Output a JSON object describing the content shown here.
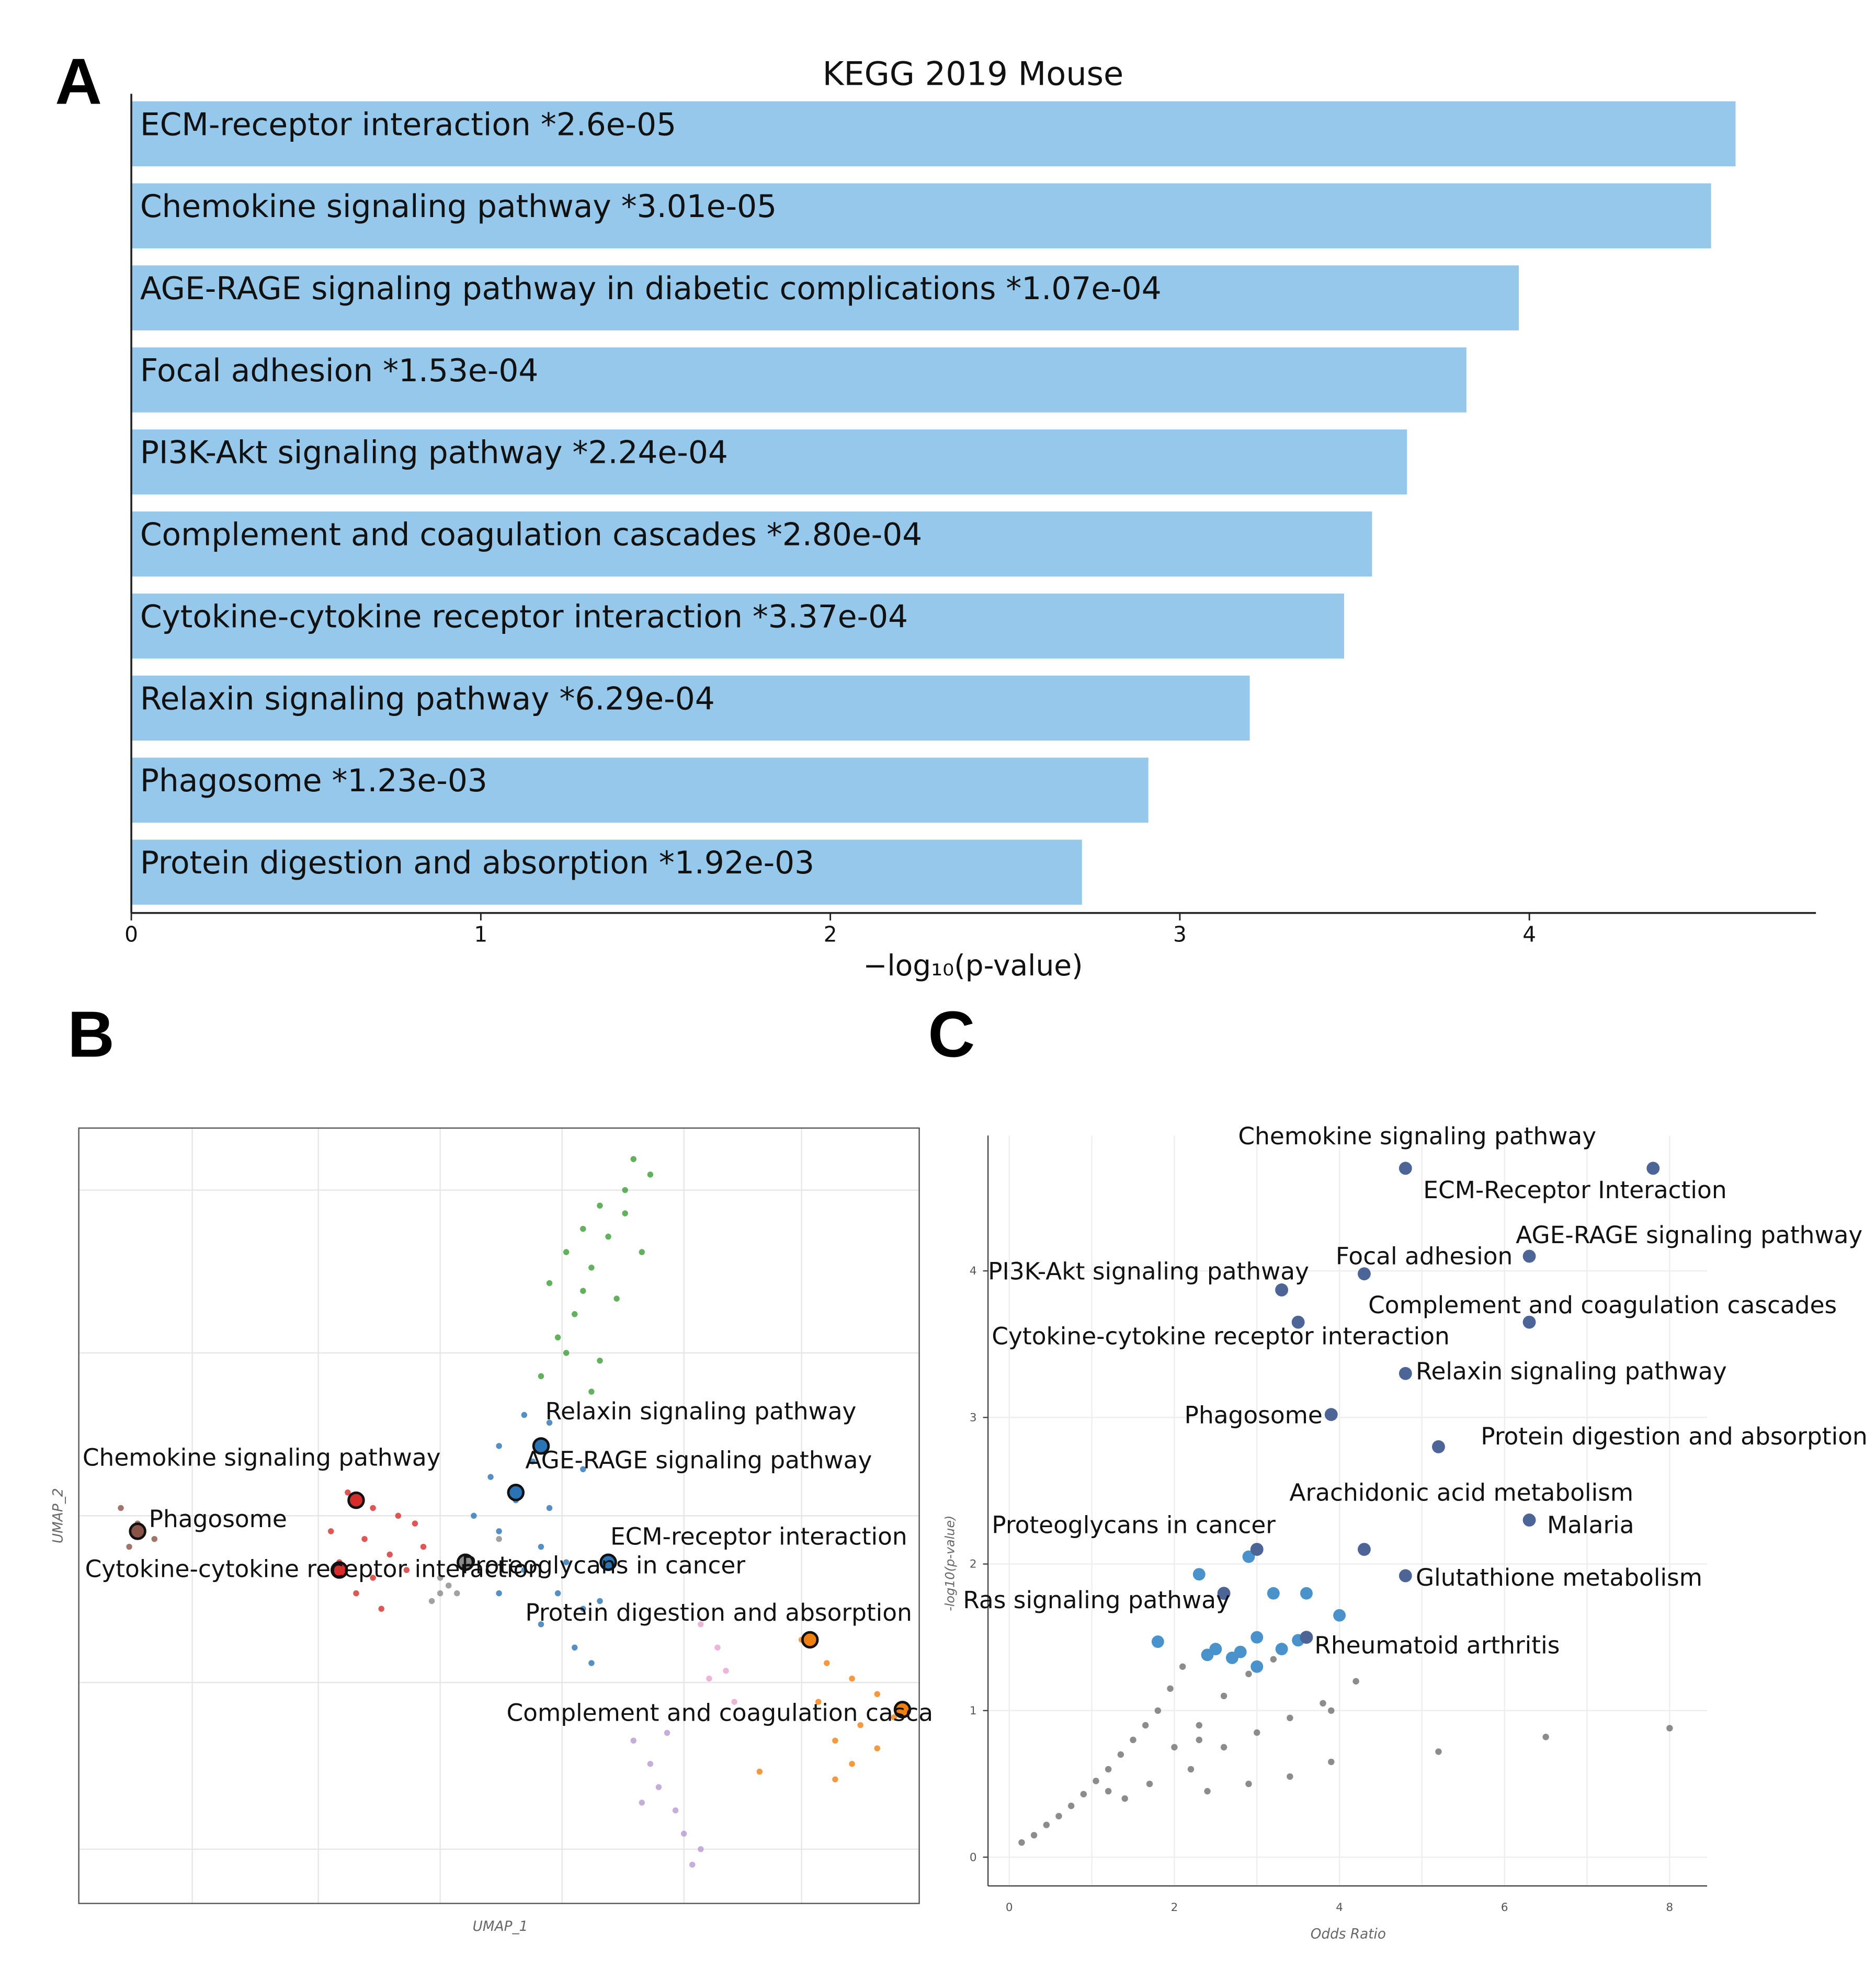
{
  "panels": {
    "a": "A",
    "b": "B",
    "c": "C"
  },
  "colors": {
    "bar": "#95c8ea",
    "green": "#3a9e35",
    "blue": "#2a73b5",
    "red": "#d62c2b",
    "brown": "#8a5347",
    "gray": "#8a8a8a",
    "orange": "#f07f12",
    "purple": "#b79ad2",
    "pink": "#e9a4cf",
    "darkblue": "#4c6596",
    "lightblue": "#5aa6d6"
  },
  "chart_data": [
    {
      "type": "bar",
      "orientation": "horizontal",
      "title": "KEGG 2019 Mouse",
      "xlabel": "−log₁₀(p-value)",
      "ylabel": "",
      "xlim": [
        0,
        4.82
      ],
      "xticks": [
        "0",
        "1",
        "2",
        "3",
        "4"
      ],
      "grid": false,
      "categories": [
        "ECM-receptor interaction  *2.6e-05",
        "Chemokine signaling pathway  *3.01e-05",
        "AGE-RAGE signaling pathway in diabetic complications  *1.07e-04",
        "Focal adhesion  *1.53e-04",
        "PI3K-Akt signaling pathway  *2.24e-04",
        "Complement and coagulation cascades  *2.80e-04",
        "Cytokine-cytokine receptor interaction  *3.37e-04",
        "Relaxin signaling pathway  *6.29e-04",
        "Phagosome  *1.23e-03",
        "Protein digestion and absorption  *1.92e-03"
      ],
      "values": [
        4.59,
        4.52,
        3.97,
        3.82,
        3.65,
        3.55,
        3.47,
        3.2,
        2.91,
        2.72
      ]
    },
    {
      "type": "scatter",
      "title": "",
      "xlabel": "UMAP_1",
      "ylabel": "UMAP_2",
      "xlim": [
        0,
        10
      ],
      "ylim": [
        0,
        10
      ],
      "grid": true,
      "clusters": [
        {
          "name": "green",
          "color": "green",
          "points": [
            [
              6.6,
              9.6
            ],
            [
              6.8,
              9.4
            ],
            [
              6.5,
              9.2
            ],
            [
              6.2,
              9.0
            ],
            [
              6.0,
              8.7
            ],
            [
              6.3,
              8.6
            ],
            [
              5.8,
              8.4
            ],
            [
              6.1,
              8.2
            ],
            [
              5.6,
              8.0
            ],
            [
              6.0,
              7.9
            ],
            [
              5.9,
              7.6
            ],
            [
              5.7,
              7.3
            ],
            [
              6.2,
              7.0
            ],
            [
              5.5,
              6.8
            ],
            [
              6.1,
              6.6
            ],
            [
              6.4,
              7.8
            ],
            [
              6.7,
              8.4
            ],
            [
              5.8,
              7.1
            ],
            [
              6.5,
              8.9
            ]
          ]
        },
        {
          "name": "blue",
          "color": "blue",
          "points": [
            [
              5.3,
              6.3
            ],
            [
              5.6,
              6.2
            ],
            [
              5.0,
              5.9
            ],
            [
              5.4,
              5.7
            ],
            [
              4.9,
              5.5
            ],
            [
              5.2,
              5.2
            ],
            [
              4.7,
              5.0
            ],
            [
              5.0,
              4.8
            ],
            [
              5.5,
              4.6
            ],
            [
              5.8,
              4.4
            ],
            [
              5.3,
              4.3
            ],
            [
              5.7,
              4.0
            ],
            [
              6.0,
              3.8
            ],
            [
              5.5,
              3.6
            ],
            [
              5.9,
              3.3
            ],
            [
              6.2,
              3.9
            ],
            [
              6.1,
              3.1
            ],
            [
              5.0,
              4.0
            ],
            [
              5.6,
              5.1
            ],
            [
              6.0,
              5.6
            ]
          ]
        },
        {
          "name": "red",
          "color": "red",
          "points": [
            [
              3.2,
              5.3
            ],
            [
              3.5,
              5.1
            ],
            [
              3.8,
              5.0
            ],
            [
              4.0,
              4.9
            ],
            [
              3.4,
              4.7
            ],
            [
              3.7,
              4.5
            ],
            [
              3.1,
              4.4
            ],
            [
              3.5,
              4.2
            ],
            [
              3.9,
              4.3
            ],
            [
              3.3,
              4.0
            ],
            [
              3.6,
              3.8
            ],
            [
              4.1,
              4.6
            ],
            [
              3.0,
              4.8
            ]
          ]
        },
        {
          "name": "brown",
          "color": "brown",
          "points": [
            [
              0.5,
              5.1
            ],
            [
              0.7,
              4.9
            ],
            [
              0.9,
              4.7
            ],
            [
              0.6,
              4.6
            ]
          ]
        },
        {
          "name": "gray",
          "color": "gray",
          "points": [
            [
              4.2,
              3.9
            ],
            [
              4.3,
              4.0
            ],
            [
              4.4,
              4.1
            ],
            [
              4.5,
              4.0
            ],
            [
              4.3,
              4.2
            ],
            [
              5.0,
              4.7
            ]
          ]
        },
        {
          "name": "pink",
          "color": "pink",
          "points": [
            [
              7.4,
              3.6
            ],
            [
              7.6,
              3.3
            ],
            [
              7.5,
              2.9
            ],
            [
              7.8,
              2.6
            ],
            [
              7.7,
              3.0
            ]
          ]
        },
        {
          "name": "purple",
          "color": "purple",
          "points": [
            [
              6.6,
              2.1
            ],
            [
              6.8,
              1.8
            ],
            [
              6.9,
              1.5
            ],
            [
              7.1,
              1.2
            ],
            [
              7.2,
              0.9
            ],
            [
              7.4,
              0.7
            ],
            [
              6.7,
              1.3
            ],
            [
              7.0,
              2.2
            ],
            [
              7.3,
              0.5
            ]
          ]
        },
        {
          "name": "orange",
          "color": "orange",
          "points": [
            [
              8.6,
              3.4
            ],
            [
              8.9,
              3.1
            ],
            [
              9.2,
              2.9
            ],
            [
              9.5,
              2.7
            ],
            [
              9.7,
              2.4
            ],
            [
              9.5,
              2.0
            ],
            [
              9.2,
              1.8
            ],
            [
              9.0,
              2.1
            ],
            [
              8.8,
              2.6
            ],
            [
              9.3,
              2.3
            ],
            [
              9.0,
              1.6
            ],
            [
              8.1,
              1.7
            ]
          ]
        }
      ],
      "highlights": [
        {
          "label": "Relaxin signaling pathway",
          "x": 5.5,
          "y": 5.9,
          "color": "blue"
        },
        {
          "label": "AGE-RAGE signaling pathway",
          "x": 5.2,
          "y": 5.3,
          "color": "blue"
        },
        {
          "label": "ECM-receptor interaction",
          "x": 6.3,
          "y": 4.4,
          "color": "blue"
        },
        {
          "label": "Proteoglycans in cancer",
          "x": 4.6,
          "y": 4.4,
          "color": "gray"
        },
        {
          "label": "Chemokine signaling pathway",
          "x": 3.3,
          "y": 5.2,
          "color": "red"
        },
        {
          "label": "Phagosome",
          "x": 0.7,
          "y": 4.8,
          "color": "brown"
        },
        {
          "label": "Cytokine-cytokine receptor interaction",
          "x": 3.1,
          "y": 4.3,
          "color": "red"
        },
        {
          "label": "Protein digestion and absorption",
          "x": 8.7,
          "y": 3.4,
          "color": "orange"
        },
        {
          "label": "Complement and coagulation cascades",
          "x": 9.8,
          "y": 2.5,
          "color": "orange"
        }
      ]
    },
    {
      "type": "scatter",
      "title": "",
      "xlabel": "Odds Ratio",
      "ylabel": "-log10(p-value)",
      "xlim": [
        0,
        8.45
      ],
      "ylim": [
        0,
        4.85
      ],
      "xticks": [
        "0",
        "2",
        "4",
        "6",
        "8"
      ],
      "yticks": [
        "0",
        "1",
        "2",
        "3",
        "4"
      ],
      "grid": true,
      "labeled_points": [
        {
          "label": "Chemokine signaling pathway",
          "x": 4.8,
          "y": 4.7
        },
        {
          "label": "ECM-Receptor Interaction",
          "x": 7.8,
          "y": 4.7
        },
        {
          "label": "AGE-RAGE signaling pathway",
          "x": 6.3,
          "y": 4.1
        },
        {
          "label": "Focal adhesion",
          "x": 4.3,
          "y": 3.98
        },
        {
          "label": "PI3K-Akt signaling pathway",
          "x": 3.3,
          "y": 3.87
        },
        {
          "label": "Complement and coagulation cascades",
          "x": 6.3,
          "y": 3.65
        },
        {
          "label": "Cytokine-cytokine receptor interaction",
          "x": 3.5,
          "y": 3.65
        },
        {
          "label": "Relaxin signaling pathway",
          "x": 4.8,
          "y": 3.3
        },
        {
          "label": "Phagosome",
          "x": 3.9,
          "y": 3.02
        },
        {
          "label": "Protein digestion and absorption",
          "x": 5.2,
          "y": 2.8
        },
        {
          "label": "Malaria",
          "x": 6.3,
          "y": 2.3
        },
        {
          "label": "Arachidonic acid metabolism",
          "x": 4.3,
          "y": 2.1
        },
        {
          "label": "Proteoglycans in cancer",
          "x": 3.0,
          "y": 2.1
        },
        {
          "label": "Glutathione metabolism",
          "x": 4.8,
          "y": 1.92
        },
        {
          "label": "Ras signaling pathway",
          "x": 2.6,
          "y": 1.8
        },
        {
          "label": "Rheumatoid arthritis",
          "x": 3.6,
          "y": 1.5
        }
      ],
      "other_significant": [
        [
          2.3,
          1.93
        ],
        [
          3.2,
          1.8
        ],
        [
          3.6,
          1.8
        ],
        [
          4.0,
          1.65
        ],
        [
          1.8,
          1.47
        ],
        [
          2.5,
          1.42
        ],
        [
          2.8,
          1.4
        ],
        [
          3.0,
          1.5
        ],
        [
          3.3,
          1.42
        ],
        [
          3.5,
          1.48
        ],
        [
          2.4,
          1.38
        ],
        [
          2.7,
          1.36
        ],
        [
          3.0,
          1.3
        ],
        [
          2.9,
          2.05
        ]
      ],
      "nonsignificant": [
        [
          0.15,
          0.1
        ],
        [
          0.3,
          0.15
        ],
        [
          0.45,
          0.22
        ],
        [
          0.6,
          0.28
        ],
        [
          0.75,
          0.35
        ],
        [
          0.9,
          0.43
        ],
        [
          1.05,
          0.52
        ],
        [
          1.2,
          0.6
        ],
        [
          1.35,
          0.7
        ],
        [
          1.5,
          0.8
        ],
        [
          1.65,
          0.9
        ],
        [
          1.8,
          1.0
        ],
        [
          1.95,
          1.15
        ],
        [
          2.1,
          1.3
        ],
        [
          2.0,
          0.75
        ],
        [
          2.3,
          0.9
        ],
        [
          2.6,
          1.1
        ],
        [
          2.9,
          1.25
        ],
        [
          3.2,
          1.35
        ],
        [
          2.2,
          0.6
        ],
        [
          2.6,
          0.75
        ],
        [
          3.0,
          0.85
        ],
        [
          3.4,
          0.95
        ],
        [
          3.8,
          1.05
        ],
        [
          4.2,
          1.2
        ],
        [
          2.4,
          0.45
        ],
        [
          2.9,
          0.5
        ],
        [
          3.4,
          0.55
        ],
        [
          1.2,
          0.45
        ],
        [
          1.4,
          0.4
        ],
        [
          1.7,
          0.5
        ],
        [
          2.3,
          0.8
        ],
        [
          3.9,
          0.65
        ],
        [
          5.2,
          0.72
        ],
        [
          6.5,
          0.82
        ],
        [
          8.0,
          0.88
        ],
        [
          3.9,
          1.0
        ]
      ]
    }
  ]
}
